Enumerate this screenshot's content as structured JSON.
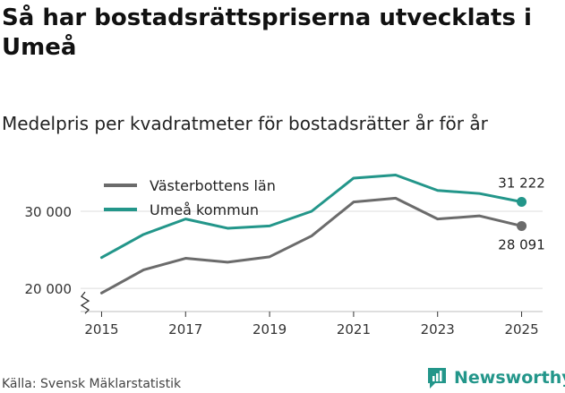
{
  "header": {
    "title": "Så har bostadsrättspriserna utvecklats i Umeå",
    "subtitle": "Medelpris per kvadratmeter för bostadsrätter år för år"
  },
  "footer": {
    "source": "Källa: Svensk Mäklarstatistik"
  },
  "brand": {
    "name": "Newsworthy",
    "icon": "newsworthy-logo-icon",
    "color": "#23968a"
  },
  "chart_data": {
    "type": "line",
    "title": "Medelpris per kvadratmeter för bostadsrätter år för år",
    "xlabel": "",
    "ylabel": "",
    "x": [
      2015,
      2016,
      2017,
      2018,
      2019,
      2020,
      2021,
      2022,
      2023,
      2024,
      2025
    ],
    "xticks": [
      2015,
      2017,
      2019,
      2021,
      2023,
      2025
    ],
    "xtick_labels": [
      "2015",
      "2017",
      "2019",
      "2021",
      "2023",
      "2025"
    ],
    "yticks": [
      20000,
      30000
    ],
    "ytick_labels": [
      "20 000",
      "30 000"
    ],
    "ylim": [
      17000,
      36500
    ],
    "xlim": [
      2014.5,
      2025.5
    ],
    "grid": true,
    "broken_y_axis": true,
    "legend_position": "top-left",
    "series": [
      {
        "name": "Västerbottens län",
        "color": "#6b6b6b",
        "values": [
          19400,
          22400,
          23900,
          23400,
          24100,
          26800,
          31200,
          31700,
          29000,
          29400,
          28091
        ],
        "end_label": "28 091"
      },
      {
        "name": "Umeå kommun",
        "color": "#23968a",
        "values": [
          24000,
          27000,
          29000,
          27800,
          28100,
          30000,
          34300,
          34700,
          32700,
          32300,
          31222
        ],
        "end_label": "31 222"
      }
    ]
  }
}
